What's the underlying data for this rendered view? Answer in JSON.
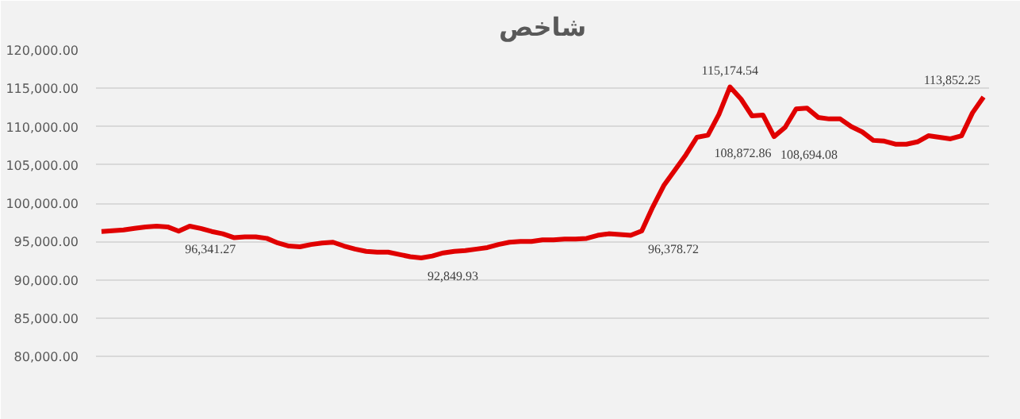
{
  "chart_data": {
    "type": "line",
    "title": "شاخص",
    "categories": [
      null,
      null,
      null,
      null,
      null,
      null,
      null,
      null,
      null,
      null,
      null,
      null,
      null,
      null,
      null,
      null,
      null,
      null,
      null,
      null,
      null,
      null,
      null,
      null,
      null,
      null,
      null,
      null,
      null,
      null,
      null,
      null,
      null,
      null,
      null,
      null,
      null,
      null,
      null,
      null,
      null,
      null,
      null,
      null,
      null,
      null,
      null,
      null,
      null,
      null,
      null,
      null,
      null,
      null,
      null,
      null,
      null,
      null,
      null,
      null,
      null,
      null,
      null,
      null,
      null,
      null,
      null,
      null,
      null,
      null,
      null,
      null,
      null,
      null,
      null,
      null,
      null,
      null,
      null,
      null,
      null
    ],
    "series": [
      {
        "color": "#e00000",
        "values": [
          96300,
          96400,
          96500,
          96700,
          96900,
          97000,
          96900,
          96341.27,
          97000,
          96700,
          96300,
          96000,
          95500,
          95600,
          95600,
          95400,
          94800,
          94400,
          94300,
          94600,
          94800,
          94900,
          94400,
          94000,
          93700,
          93600,
          93600,
          93300,
          93000,
          92849.93,
          93100,
          93500,
          93700,
          93800,
          94000,
          94200,
          94600,
          94900,
          95000,
          95000,
          95200,
          95200,
          95300,
          95300,
          95400,
          95800,
          96000,
          95900,
          95800,
          96378.72,
          99500,
          102300,
          104300,
          106300,
          108600,
          108872.86,
          111600,
          115174.54,
          113600,
          111400,
          111500,
          108694.08,
          109900,
          112300,
          112400,
          111200,
          111000,
          111000,
          110000,
          109300,
          108200,
          108100,
          107700,
          107700,
          108000,
          108800,
          108600,
          108400,
          108800,
          111800,
          113852.25
        ],
        "value_labels": [
          null,
          null,
          null,
          null,
          null,
          null,
          null,
          "96,341.27",
          null,
          null,
          null,
          null,
          null,
          null,
          null,
          null,
          null,
          null,
          null,
          null,
          null,
          null,
          null,
          null,
          null,
          null,
          null,
          null,
          null,
          "92,849.93",
          null,
          null,
          null,
          null,
          null,
          null,
          null,
          null,
          null,
          null,
          null,
          null,
          null,
          null,
          null,
          null,
          null,
          null,
          null,
          "96,378.72",
          null,
          null,
          null,
          null,
          null,
          "108,872.86",
          null,
          "115,174.54",
          null,
          null,
          null,
          "108,694.08",
          null,
          null,
          null,
          null,
          null,
          null,
          null,
          null,
          null,
          null,
          null,
          null,
          null,
          null,
          null,
          null,
          null,
          null,
          "113,852.25"
        ]
      }
    ],
    "ylim": [
      80000,
      120000
    ],
    "yticks": [
      {
        "value": 80000,
        "label": "80,000.00"
      },
      {
        "value": 85000,
        "label": "85,000.00"
      },
      {
        "value": 90000,
        "label": "90,000.00"
      },
      {
        "value": 95000,
        "label": "95,000.00"
      },
      {
        "value": 100000,
        "label": "100,000.00"
      },
      {
        "value": 105000,
        "label": "105,000.00"
      },
      {
        "value": 110000,
        "label": "110,000.00"
      },
      {
        "value": 115000,
        "label": "115,000.00"
      },
      {
        "value": 120000,
        "label": "120,000.00"
      }
    ],
    "grid": "y",
    "marker": "none",
    "line_style": "solid"
  }
}
